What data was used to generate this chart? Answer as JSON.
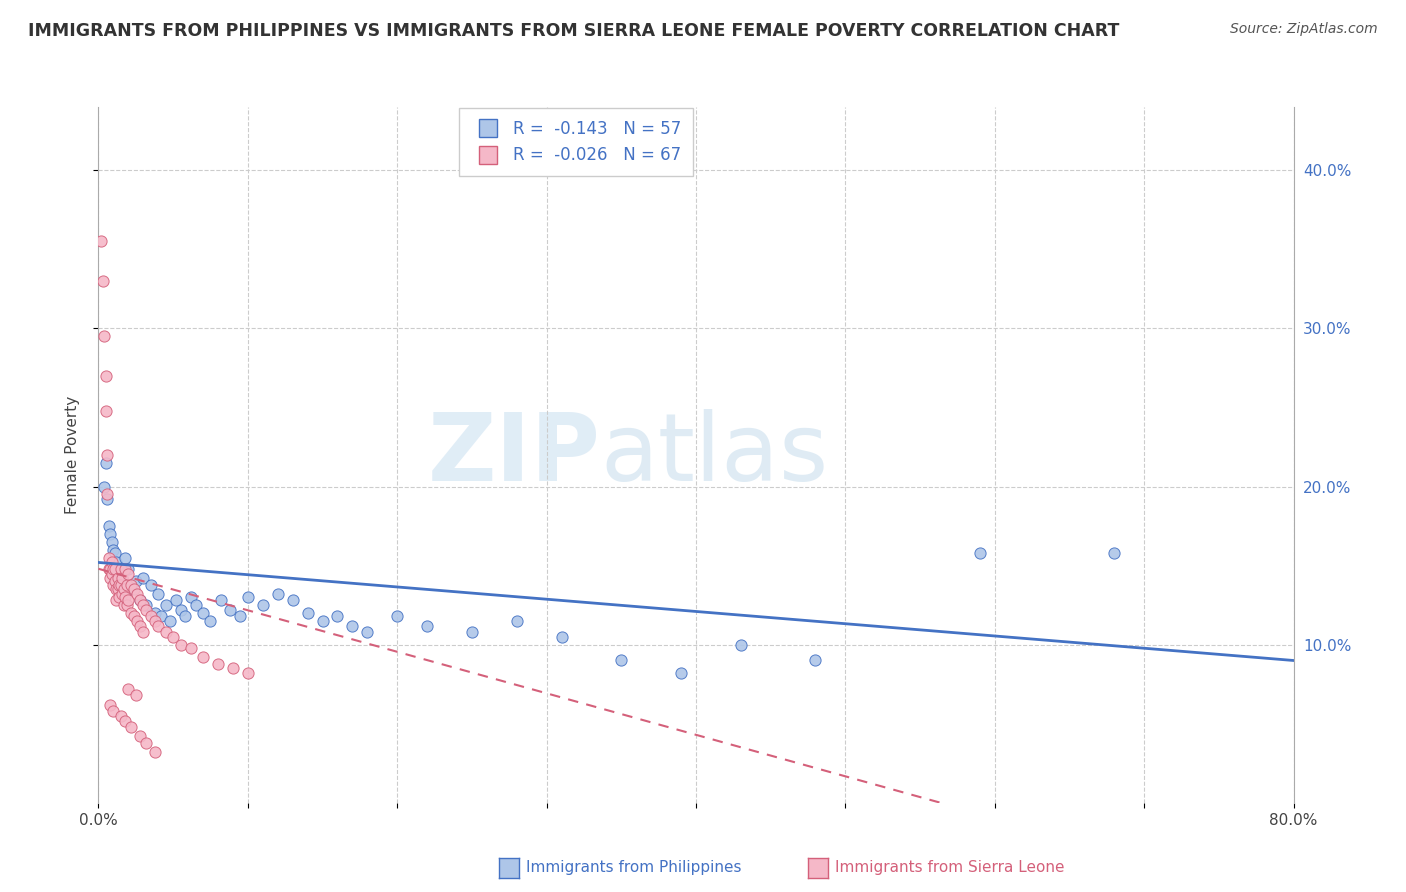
{
  "title": "IMMIGRANTS FROM PHILIPPINES VS IMMIGRANTS FROM SIERRA LEONE FEMALE POVERTY CORRELATION CHART",
  "source": "Source: ZipAtlas.com",
  "ylabel": "Female Poverty",
  "xlim": [
    0.0,
    0.8
  ],
  "ylim": [
    0.0,
    0.44
  ],
  "xtick_positions": [
    0.0,
    0.1,
    0.2,
    0.3,
    0.4,
    0.5,
    0.6,
    0.7,
    0.8
  ],
  "xticklabels": [
    "0.0%",
    "",
    "",
    "",
    "",
    "",
    "",
    "",
    "80.0%"
  ],
  "ytick_positions": [
    0.1,
    0.2,
    0.3,
    0.4
  ],
  "ytick_labels": [
    "10.0%",
    "20.0%",
    "30.0%",
    "40.0%"
  ],
  "philippines_color": "#aec6e8",
  "philippines_edge_color": "#4472c4",
  "sierra_leone_color": "#f5b8c8",
  "sierra_leone_edge_color": "#d4607a",
  "philippines_line_color": "#4472c4",
  "sierra_leone_line_color": "#d4607a",
  "R_philippines": -0.143,
  "N_philippines": 57,
  "R_sierra_leone": -0.026,
  "N_sierra_leone": 67,
  "watermark_zip": "ZIP",
  "watermark_atlas": "atlas",
  "philippines_scatter": [
    [
      0.004,
      0.2
    ],
    [
      0.005,
      0.215
    ],
    [
      0.006,
      0.192
    ],
    [
      0.007,
      0.175
    ],
    [
      0.008,
      0.17
    ],
    [
      0.009,
      0.165
    ],
    [
      0.01,
      0.16
    ],
    [
      0.011,
      0.158
    ],
    [
      0.012,
      0.152
    ],
    [
      0.013,
      0.148
    ],
    [
      0.014,
      0.145
    ],
    [
      0.015,
      0.148
    ],
    [
      0.016,
      0.142
    ],
    [
      0.017,
      0.138
    ],
    [
      0.018,
      0.155
    ],
    [
      0.02,
      0.148
    ],
    [
      0.022,
      0.135
    ],
    [
      0.025,
      0.14
    ],
    [
      0.028,
      0.128
    ],
    [
      0.03,
      0.142
    ],
    [
      0.032,
      0.125
    ],
    [
      0.035,
      0.138
    ],
    [
      0.038,
      0.12
    ],
    [
      0.04,
      0.132
    ],
    [
      0.042,
      0.118
    ],
    [
      0.045,
      0.125
    ],
    [
      0.048,
      0.115
    ],
    [
      0.052,
      0.128
    ],
    [
      0.055,
      0.122
    ],
    [
      0.058,
      0.118
    ],
    [
      0.062,
      0.13
    ],
    [
      0.065,
      0.125
    ],
    [
      0.07,
      0.12
    ],
    [
      0.075,
      0.115
    ],
    [
      0.082,
      0.128
    ],
    [
      0.088,
      0.122
    ],
    [
      0.095,
      0.118
    ],
    [
      0.1,
      0.13
    ],
    [
      0.11,
      0.125
    ],
    [
      0.12,
      0.132
    ],
    [
      0.13,
      0.128
    ],
    [
      0.14,
      0.12
    ],
    [
      0.15,
      0.115
    ],
    [
      0.16,
      0.118
    ],
    [
      0.17,
      0.112
    ],
    [
      0.18,
      0.108
    ],
    [
      0.2,
      0.118
    ],
    [
      0.22,
      0.112
    ],
    [
      0.25,
      0.108
    ],
    [
      0.28,
      0.115
    ],
    [
      0.31,
      0.105
    ],
    [
      0.35,
      0.09
    ],
    [
      0.39,
      0.082
    ],
    [
      0.43,
      0.1
    ],
    [
      0.48,
      0.09
    ],
    [
      0.59,
      0.158
    ],
    [
      0.68,
      0.158
    ]
  ],
  "sierra_leone_scatter": [
    [
      0.002,
      0.355
    ],
    [
      0.003,
      0.33
    ],
    [
      0.004,
      0.295
    ],
    [
      0.005,
      0.27
    ],
    [
      0.005,
      0.248
    ],
    [
      0.006,
      0.22
    ],
    [
      0.006,
      0.195
    ],
    [
      0.007,
      0.148
    ],
    [
      0.007,
      0.155
    ],
    [
      0.008,
      0.148
    ],
    [
      0.008,
      0.142
    ],
    [
      0.009,
      0.152
    ],
    [
      0.009,
      0.145
    ],
    [
      0.01,
      0.148
    ],
    [
      0.01,
      0.138
    ],
    [
      0.011,
      0.148
    ],
    [
      0.011,
      0.14
    ],
    [
      0.012,
      0.135
    ],
    [
      0.012,
      0.128
    ],
    [
      0.013,
      0.142
    ],
    [
      0.013,
      0.135
    ],
    [
      0.014,
      0.138
    ],
    [
      0.014,
      0.13
    ],
    [
      0.015,
      0.148
    ],
    [
      0.015,
      0.138
    ],
    [
      0.016,
      0.142
    ],
    [
      0.016,
      0.132
    ],
    [
      0.017,
      0.135
    ],
    [
      0.017,
      0.125
    ],
    [
      0.018,
      0.148
    ],
    [
      0.018,
      0.13
    ],
    [
      0.019,
      0.138
    ],
    [
      0.019,
      0.125
    ],
    [
      0.02,
      0.145
    ],
    [
      0.02,
      0.128
    ],
    [
      0.022,
      0.138
    ],
    [
      0.022,
      0.12
    ],
    [
      0.024,
      0.135
    ],
    [
      0.024,
      0.118
    ],
    [
      0.026,
      0.132
    ],
    [
      0.026,
      0.115
    ],
    [
      0.028,
      0.128
    ],
    [
      0.028,
      0.112
    ],
    [
      0.03,
      0.125
    ],
    [
      0.03,
      0.108
    ],
    [
      0.032,
      0.122
    ],
    [
      0.035,
      0.118
    ],
    [
      0.038,
      0.115
    ],
    [
      0.04,
      0.112
    ],
    [
      0.045,
      0.108
    ],
    [
      0.05,
      0.105
    ],
    [
      0.055,
      0.1
    ],
    [
      0.062,
      0.098
    ],
    [
      0.07,
      0.092
    ],
    [
      0.08,
      0.088
    ],
    [
      0.09,
      0.085
    ],
    [
      0.1,
      0.082
    ],
    [
      0.02,
      0.072
    ],
    [
      0.025,
      0.068
    ],
    [
      0.008,
      0.062
    ],
    [
      0.01,
      0.058
    ],
    [
      0.015,
      0.055
    ],
    [
      0.018,
      0.052
    ],
    [
      0.022,
      0.048
    ],
    [
      0.028,
      0.042
    ],
    [
      0.032,
      0.038
    ],
    [
      0.038,
      0.032
    ]
  ]
}
